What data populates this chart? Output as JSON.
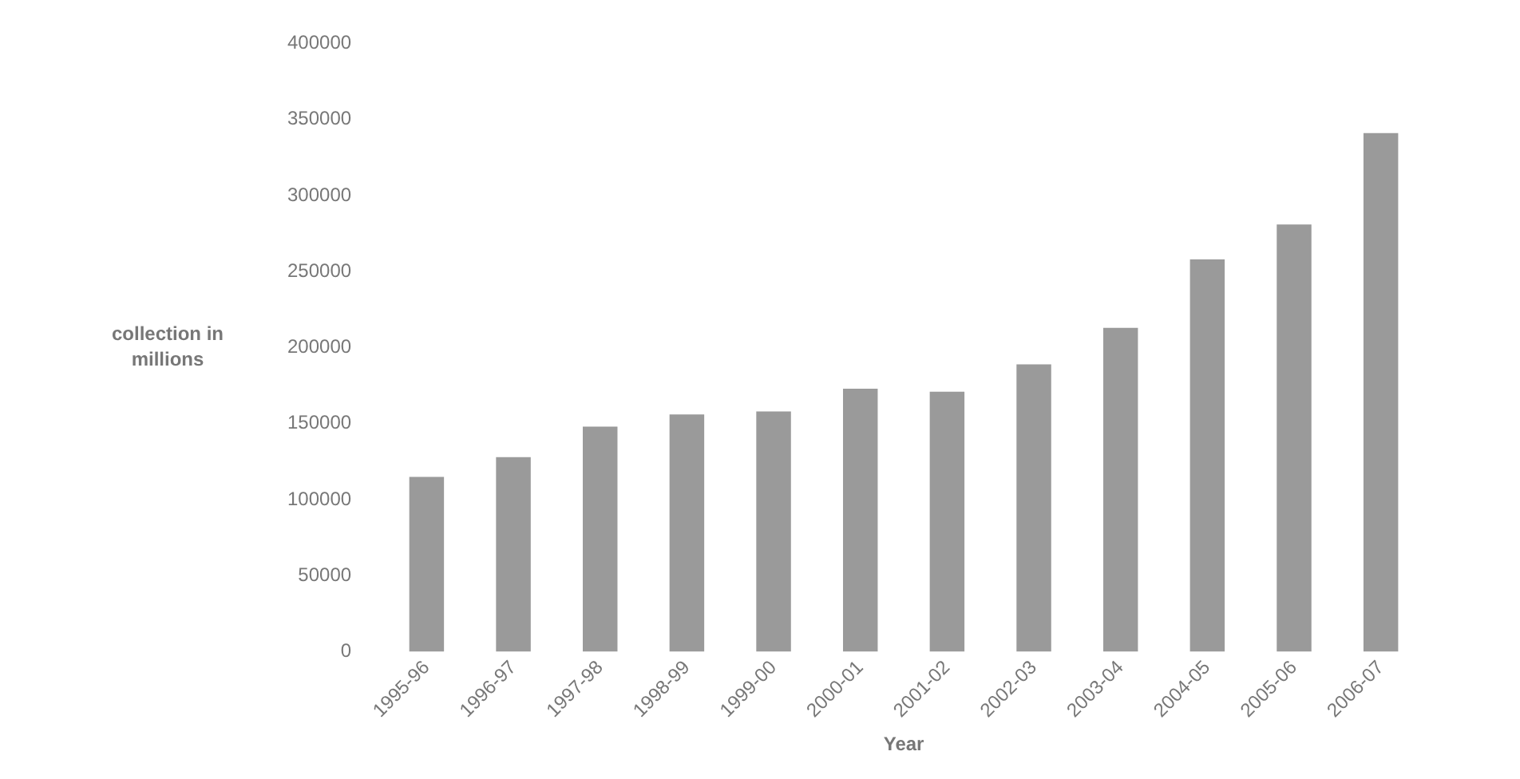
{
  "chart_data": {
    "type": "bar",
    "xlabel": "Year",
    "ylabel": "collection in millions",
    "categories": [
      "1995-96",
      "1996-97",
      "1997-98",
      "1998-99",
      "1999-00",
      "2000-01",
      "2001-02",
      "2002-03",
      "2003-04",
      "2004-05",
      "2005-06",
      "2006-07"
    ],
    "values": [
      115000,
      128000,
      148000,
      156000,
      158000,
      173000,
      171000,
      189000,
      213000,
      258000,
      281000,
      341000
    ],
    "color": "#9a9a9a",
    "ylim": [
      0,
      400000
    ],
    "yticks": [
      0,
      50000,
      100000,
      150000,
      200000,
      250000,
      300000,
      350000,
      400000
    ],
    "grid": false,
    "legend": false
  }
}
